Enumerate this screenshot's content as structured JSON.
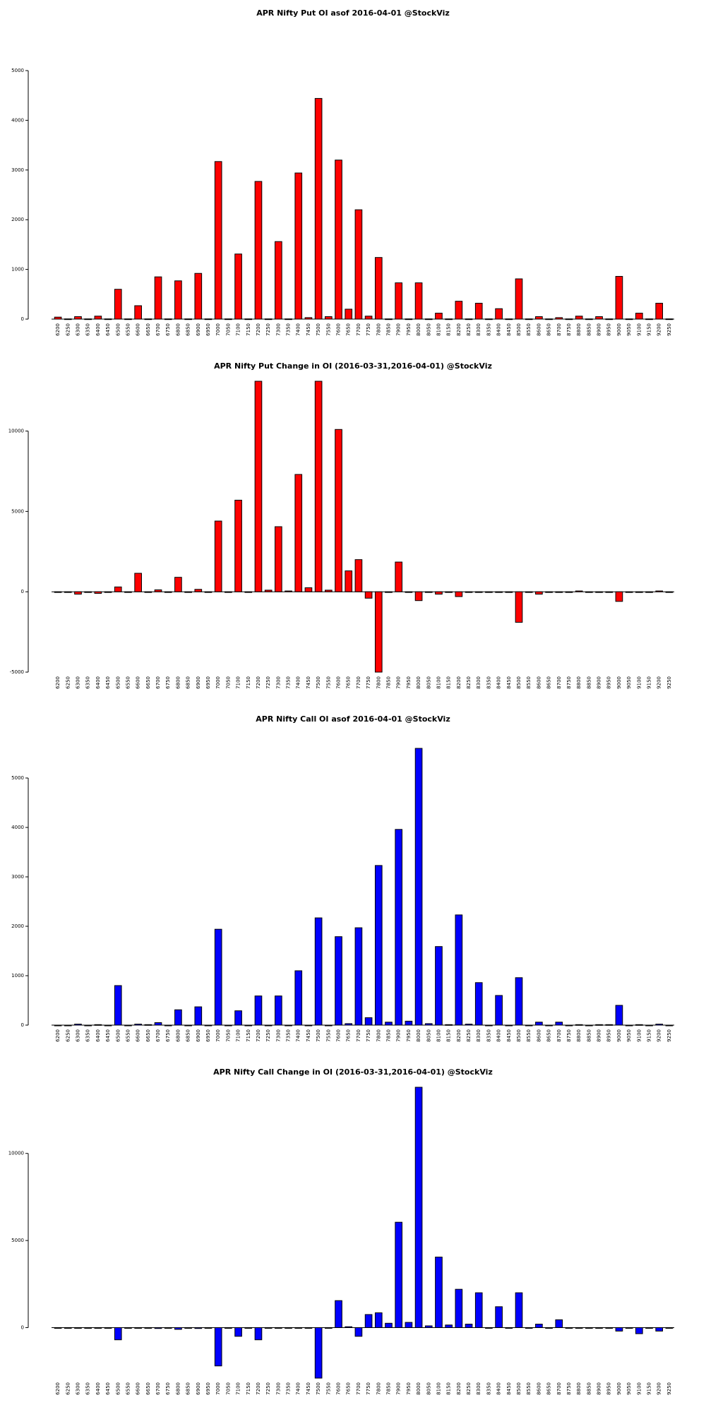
{
  "chart_data": [
    {
      "type": "bar",
      "title": "APR Nifty Put OI asof 2016-04-01 @StockViz",
      "color": "#ff0000",
      "categories": [
        "6200",
        "6250",
        "6300",
        "6350",
        "6400",
        "6450",
        "6500",
        "6550",
        "6600",
        "6650",
        "6700",
        "6750",
        "6800",
        "6850",
        "6900",
        "6950",
        "7000",
        "7050",
        "7100",
        "7150",
        "7200",
        "7250",
        "7300",
        "7350",
        "7400",
        "7450",
        "7500",
        "7550",
        "7600",
        "7650",
        "7700",
        "7750",
        "7800",
        "7850",
        "7900",
        "7950",
        "8000",
        "8050",
        "8100",
        "8150",
        "8200",
        "8250",
        "8300",
        "8350",
        "8400",
        "8450",
        "8500",
        "8550",
        "8600",
        "8650",
        "8700",
        "8750",
        "8800",
        "8850",
        "8900",
        "8950",
        "9000",
        "9050",
        "9100",
        "9150",
        "9200",
        "9250"
      ],
      "values": [
        40,
        5,
        50,
        5,
        60,
        5,
        600,
        5,
        270,
        5,
        850,
        5,
        770,
        5,
        920,
        5,
        3170,
        5,
        1310,
        5,
        2770,
        5,
        1560,
        5,
        2940,
        30,
        4440,
        50,
        3200,
        200,
        2200,
        60,
        1240,
        5,
        730,
        5,
        730,
        5,
        120,
        5,
        360,
        5,
        320,
        5,
        210,
        5,
        810,
        5,
        50,
        5,
        30,
        5,
        60,
        5,
        50,
        5,
        860,
        5,
        120,
        5,
        320,
        5
      ],
      "ylim": [
        0,
        5000
      ],
      "yticks": [
        0,
        1000,
        2000,
        3000,
        4000,
        5000
      ]
    },
    {
      "type": "bar",
      "title": "APR Nifty Put Change in OI (2016-03-31,2016-04-01) @StockViz",
      "color": "#ff0000",
      "categories": [
        "6200",
        "6250",
        "6300",
        "6350",
        "6400",
        "6450",
        "6500",
        "6550",
        "6600",
        "6650",
        "6700",
        "6750",
        "6800",
        "6850",
        "6900",
        "6950",
        "7000",
        "7050",
        "7100",
        "7150",
        "7200",
        "7250",
        "7300",
        "7350",
        "7400",
        "7450",
        "7500",
        "7550",
        "7600",
        "7650",
        "7700",
        "7750",
        "7800",
        "7850",
        "7900",
        "7950",
        "8000",
        "8050",
        "8100",
        "8150",
        "8200",
        "8250",
        "8300",
        "8350",
        "8400",
        "8450",
        "8500",
        "8550",
        "8600",
        "8650",
        "8700",
        "8750",
        "8800",
        "8850",
        "8900",
        "8950",
        "9000",
        "9050",
        "9100",
        "9150",
        "9200",
        "9250"
      ],
      "values": [
        0,
        0,
        -150,
        0,
        -100,
        0,
        300,
        0,
        1150,
        0,
        120,
        0,
        900,
        0,
        150,
        0,
        4400,
        0,
        5700,
        0,
        13100,
        100,
        4050,
        50,
        7300,
        250,
        13100,
        100,
        10100,
        1300,
        2000,
        -400,
        -5000,
        0,
        1850,
        0,
        -550,
        0,
        -150,
        0,
        -300,
        0,
        0,
        0,
        0,
        0,
        -1900,
        0,
        -150,
        0,
        0,
        0,
        50,
        0,
        0,
        0,
        -600,
        0,
        0,
        0,
        50,
        0
      ],
      "ylim": [
        -5000,
        13100
      ],
      "yticks": [
        -5000,
        0,
        5000,
        10000
      ]
    },
    {
      "type": "bar",
      "title": "APR Nifty Call OI asof 2016-04-01 @StockViz",
      "color": "#0000ff",
      "categories": [
        "6200",
        "6250",
        "6300",
        "6350",
        "6400",
        "6450",
        "6500",
        "6550",
        "6600",
        "6650",
        "6700",
        "6750",
        "6800",
        "6850",
        "6900",
        "6950",
        "7000",
        "7050",
        "7100",
        "7150",
        "7200",
        "7250",
        "7300",
        "7350",
        "7400",
        "7450",
        "7500",
        "7550",
        "7600",
        "7650",
        "7700",
        "7750",
        "7800",
        "7850",
        "7900",
        "7950",
        "8000",
        "8050",
        "8100",
        "8150",
        "8200",
        "8250",
        "8300",
        "8350",
        "8400",
        "8450",
        "8500",
        "8550",
        "8600",
        "8650",
        "8700",
        "8750",
        "8800",
        "8850",
        "8900",
        "8950",
        "9000",
        "9050",
        "9100",
        "9150",
        "9200",
        "9250"
      ],
      "values": [
        0,
        0,
        20,
        0,
        10,
        0,
        800,
        0,
        20,
        10,
        50,
        0,
        310,
        0,
        370,
        0,
        1940,
        0,
        290,
        0,
        590,
        0,
        590,
        0,
        1100,
        0,
        2170,
        0,
        1790,
        30,
        1970,
        150,
        3230,
        60,
        3960,
        80,
        5600,
        30,
        1590,
        10,
        2230,
        20,
        860,
        0,
        600,
        0,
        960,
        0,
        60,
        0,
        60,
        0,
        10,
        0,
        10,
        10,
        400,
        0,
        10,
        0,
        20,
        0
      ],
      "ylim": [
        0,
        5600
      ],
      "yticks": [
        0,
        1000,
        2000,
        3000,
        4000,
        5000
      ]
    },
    {
      "type": "bar",
      "title": "APR Nifty Call Change in OI (2016-03-31,2016-04-01) @StockViz",
      "color": "#0000ff",
      "categories": [
        "6200",
        "6250",
        "6300",
        "6350",
        "6400",
        "6450",
        "6500",
        "6550",
        "6600",
        "6650",
        "6700",
        "6750",
        "6800",
        "6850",
        "6900",
        "6950",
        "7000",
        "7050",
        "7100",
        "7150",
        "7200",
        "7250",
        "7300",
        "7350",
        "7400",
        "7450",
        "7500",
        "7550",
        "7600",
        "7650",
        "7700",
        "7750",
        "7800",
        "7850",
        "7900",
        "7950",
        "8000",
        "8050",
        "8100",
        "8150",
        "8200",
        "8250",
        "8300",
        "8350",
        "8400",
        "8450",
        "8500",
        "8550",
        "8600",
        "8650",
        "8700",
        "8750",
        "8800",
        "8850",
        "8900",
        "8950",
        "9000",
        "9050",
        "9100",
        "9150",
        "9200",
        "9250"
      ],
      "values": [
        0,
        0,
        0,
        0,
        0,
        0,
        -700,
        0,
        0,
        0,
        -50,
        0,
        -100,
        0,
        -50,
        0,
        -2200,
        0,
        -500,
        0,
        -700,
        0,
        0,
        0,
        0,
        0,
        -2900,
        0,
        1550,
        50,
        -500,
        750,
        850,
        250,
        6050,
        300,
        13800,
        100,
        4050,
        150,
        2200,
        200,
        2000,
        0,
        1200,
        0,
        2000,
        0,
        200,
        0,
        450,
        0,
        0,
        0,
        0,
        0,
        -200,
        0,
        -350,
        0,
        -200,
        0
      ],
      "ylim": [
        -2900,
        13800
      ],
      "yticks": [
        0,
        5000,
        10000
      ]
    }
  ]
}
